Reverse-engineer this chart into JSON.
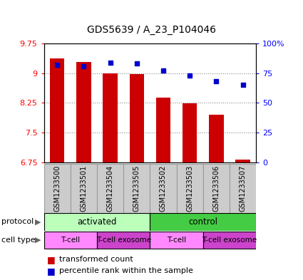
{
  "title": "GDS5639 / A_23_P104046",
  "samples": [
    "GSM1233500",
    "GSM1233501",
    "GSM1233504",
    "GSM1233505",
    "GSM1233502",
    "GSM1233503",
    "GSM1233506",
    "GSM1233507"
  ],
  "transformed_count": [
    9.38,
    9.28,
    9.0,
    8.97,
    8.38,
    8.24,
    7.95,
    6.82
  ],
  "percentile_rank": [
    82,
    81,
    84,
    83,
    77,
    73,
    68,
    65
  ],
  "y_min": 6.75,
  "y_max": 9.75,
  "y_ticks": [
    6.75,
    7.5,
    8.25,
    9.0,
    9.75
  ],
  "y_tick_labels": [
    "6.75",
    "7.5",
    "8.25",
    "9",
    "9.75"
  ],
  "right_y_ticks": [
    0,
    25,
    50,
    75,
    100
  ],
  "right_y_tick_labels": [
    "0",
    "25",
    "50",
    "75",
    "100%"
  ],
  "bar_color": "#cc0000",
  "dot_color": "#0000cc",
  "bar_width": 0.55,
  "protocol_groups": [
    {
      "label": "activated",
      "start": 0,
      "end": 4,
      "color": "#bbffbb"
    },
    {
      "label": "control",
      "start": 4,
      "end": 8,
      "color": "#44cc44"
    }
  ],
  "cell_type_groups": [
    {
      "label": "T-cell",
      "start": 0,
      "end": 2,
      "color": "#ff88ff"
    },
    {
      "label": "T-cell exosome",
      "start": 2,
      "end": 4,
      "color": "#cc44cc"
    },
    {
      "label": "T-cell",
      "start": 4,
      "end": 6,
      "color": "#ff88ff"
    },
    {
      "label": "T-cell exosome",
      "start": 6,
      "end": 8,
      "color": "#cc44cc"
    }
  ],
  "legend_bar_label": "transformed count",
  "legend_dot_label": "percentile rank within the sample",
  "plot_bg_color": "#ffffff",
  "grid_color": "#888888",
  "sample_bg_color": "#cccccc",
  "sample_border_color": "#999999"
}
